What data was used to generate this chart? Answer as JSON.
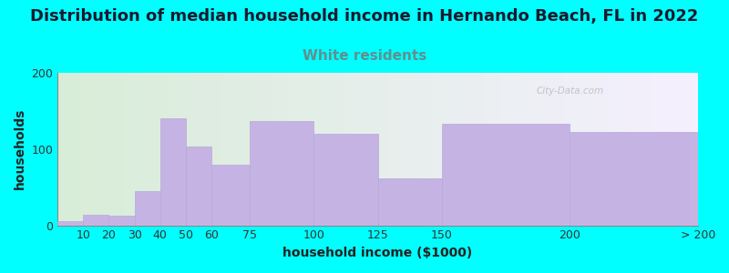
{
  "title": "Distribution of median household income in Hernando Beach, FL in 2022",
  "subtitle": "White residents",
  "xlabel": "household income ($1000)",
  "ylabel": "households",
  "background_color": "#00FFFF",
  "bar_color": "#C5B4E3",
  "bar_edge_color": "#B8A8D8",
  "bin_edges": [
    0,
    10,
    20,
    30,
    40,
    50,
    60,
    75,
    100,
    125,
    150,
    200,
    250
  ],
  "bin_labels": [
    "10",
    "20",
    "30",
    "40",
    "50",
    "60",
    "75",
    "100",
    "125",
    "150",
    "200",
    "> 200"
  ],
  "values": [
    5,
    14,
    13,
    45,
    140,
    103,
    80,
    137,
    120,
    62,
    133,
    122
  ],
  "ylim": [
    0,
    200
  ],
  "yticks": [
    0,
    100,
    200
  ],
  "title_fontsize": 13,
  "subtitle_fontsize": 11,
  "subtitle_color": "#5F9090",
  "title_color": "#1a1a2e",
  "axis_label_fontsize": 10,
  "tick_fontsize": 9,
  "watermark": "City-Data.com",
  "grad_left": "#d8edd8",
  "grad_right": "#f5f0ff"
}
